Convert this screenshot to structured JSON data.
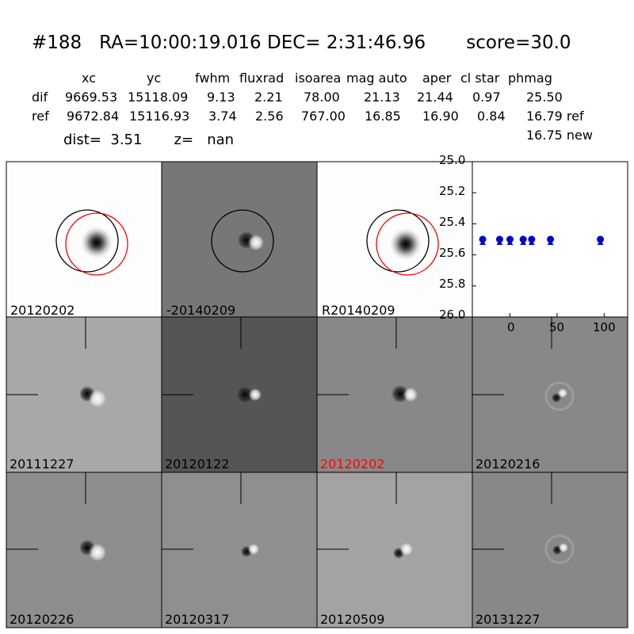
{
  "header": {
    "title": "#188   RA=10:00:19.016 DEC= 2:31:46.96       score=30.0",
    "dist_line": "dist=  3.51       z=   nan"
  },
  "table": {
    "columns": [
      "xc",
      "yc",
      "fwhm",
      "fluxrad",
      "isoarea",
      "mag auto",
      "aper",
      "cl star",
      "phmag"
    ],
    "rows": [
      {
        "label": "dif",
        "values": [
          "9669.53",
          "15118.09",
          "9.13",
          "2.21",
          "78.00",
          "21.13",
          "21.44",
          "0.97",
          "25.50"
        ]
      },
      {
        "label": "ref",
        "values": [
          "9672.84",
          "15116.93",
          "3.74",
          "2.56",
          "767.00",
          "16.85",
          "16.90",
          "0.84",
          "16.79 ref"
        ]
      }
    ],
    "extra": "16.75 new"
  },
  "panels": {
    "top_row": [
      "20120202",
      "-20140209",
      "R20140209"
    ],
    "middle_row": [
      "20111227",
      "20120122",
      "20120202",
      "20120216"
    ],
    "bottom_row": [
      "20120226",
      "20120317",
      "20120509",
      "20131227"
    ],
    "highlight_color": "#ff0000",
    "highlighted_index": 2
  },
  "chart_data": {
    "type": "scatter",
    "y_ticks": [
      "25.0",
      "25.2",
      "25.4",
      "25.6",
      "25.8",
      "26.0"
    ],
    "x_ticks": [
      "0",
      "50",
      "100"
    ],
    "xlim": [
      -40,
      125
    ],
    "ylim": [
      26.0,
      25.0
    ],
    "y_inverted": true,
    "grid": false,
    "marker_color": "#0000cc",
    "points": [
      {
        "x": -29,
        "y": 25.5
      },
      {
        "x": -11,
        "y": 25.5
      },
      {
        "x": 0,
        "y": 25.5
      },
      {
        "x": 14,
        "y": 25.5
      },
      {
        "x": 23,
        "y": 25.5
      },
      {
        "x": 43,
        "y": 25.5
      },
      {
        "x": 96,
        "y": 25.5
      }
    ]
  }
}
